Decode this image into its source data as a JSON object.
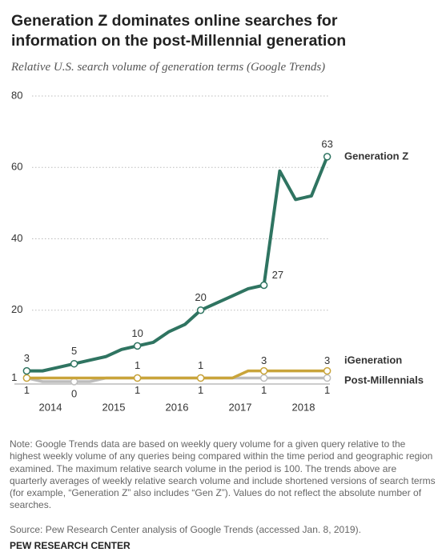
{
  "chart_data": {
    "type": "line",
    "title": "Generation Z dominates online searches for information on the post-Millennial generation",
    "subtitle": "Relative U.S. search volume of generation terms (Google Trends)",
    "x": [
      2014.125,
      2014.375,
      2014.625,
      2014.875,
      2015.125,
      2015.375,
      2015.625,
      2015.875,
      2016.125,
      2016.375,
      2016.625,
      2016.875,
      2017.125,
      2017.375,
      2017.625,
      2017.875,
      2018.125,
      2018.375,
      2018.625,
      2018.875
    ],
    "series": [
      {
        "name": "Generation Z",
        "color": "#2f7461",
        "values": [
          3,
          3,
          4,
          5,
          6,
          7,
          9,
          10,
          11,
          14,
          16,
          20,
          22,
          24,
          26,
          27,
          59,
          51,
          52,
          63
        ],
        "value_labels": [
          "3",
          null,
          null,
          "5",
          null,
          null,
          null,
          "10",
          null,
          null,
          null,
          "20",
          null,
          null,
          null,
          "27",
          null,
          null,
          null,
          "63"
        ]
      },
      {
        "name": "iGeneration",
        "color": "#c9a43a",
        "values": [
          1,
          1,
          1,
          1,
          1,
          1,
          1,
          1,
          1,
          1,
          1,
          1,
          1,
          1,
          3,
          3,
          3,
          3,
          3,
          3
        ],
        "value_labels": [
          "1",
          null,
          null,
          null,
          null,
          null,
          null,
          "1",
          null,
          null,
          null,
          "1",
          null,
          null,
          null,
          "3",
          null,
          null,
          null,
          "3"
        ]
      },
      {
        "name": "Post-Millennials",
        "color": "#bdbdbd",
        "values": [
          1,
          0,
          0,
          0,
          0,
          1,
          1,
          1,
          1,
          1,
          1,
          1,
          1,
          1,
          1,
          1,
          1,
          1,
          1,
          1
        ],
        "value_labels": [
          "1",
          null,
          null,
          "0",
          null,
          null,
          null,
          "1",
          null,
          null,
          null,
          "1",
          null,
          null,
          null,
          "1",
          null,
          null,
          null,
          "1"
        ]
      }
    ],
    "xlim": [
      2013.8,
      2019.2
    ],
    "xticks": [
      {
        "value": 2014.5,
        "label": "2014"
      },
      {
        "value": 2015.5,
        "label": "2015"
      },
      {
        "value": 2016.5,
        "label": "2016"
      },
      {
        "value": 2017.5,
        "label": "2017"
      },
      {
        "value": 2018.5,
        "label": "2018"
      }
    ],
    "ylim": [
      0,
      80
    ],
    "yticks": [
      20,
      40,
      60,
      80
    ],
    "grid": true,
    "note": "Note: Google Trends data are based on weekly query volume for a given query relative to the highest weekly volume of any queries being compared within the time period and geographic region examined. The maximum relative search volume in the period is 100. The trends above are quarterly averages of weekly relative search volume and include shortened versions of search terms (for example, “Generation Z” also includes “Gen Z”). Values do not reflect the absolute number of searches.",
    "source": "Source: Pew Research Center analysis of Google Trends (accessed Jan. 8, 2019).",
    "credit": "PEW RESEARCH CENTER"
  }
}
